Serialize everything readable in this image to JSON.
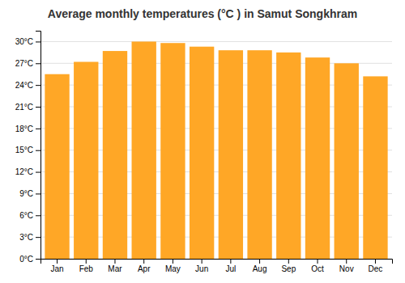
{
  "chart_data": {
    "type": "bar",
    "title": "Average monthly temperatures (°C ) in Samut Songkhram",
    "categories": [
      "Jan",
      "Feb",
      "Mar",
      "Apr",
      "May",
      "Jun",
      "Jul",
      "Aug",
      "Sep",
      "Oct",
      "Nov",
      "Dec"
    ],
    "values": [
      25.5,
      27.2,
      28.7,
      30.0,
      29.8,
      29.3,
      28.8,
      28.8,
      28.5,
      27.8,
      27.0,
      25.2
    ],
    "color": "#FFA726",
    "ylim": [
      0,
      31.5
    ],
    "yticks": [
      {
        "value": 0,
        "label": "0°C"
      },
      {
        "value": 3,
        "label": "3°C"
      },
      {
        "value": 6,
        "label": "6°C"
      },
      {
        "value": 9,
        "label": "9°C"
      },
      {
        "value": 12,
        "label": "12°C"
      },
      {
        "value": 15,
        "label": "15°C"
      },
      {
        "value": 18,
        "label": "18°C"
      },
      {
        "value": 21,
        "label": "21°C"
      },
      {
        "value": 24,
        "label": "24°C"
      },
      {
        "value": 27,
        "label": "27°C"
      },
      {
        "value": 30,
        "label": "30°C"
      }
    ],
    "grid": true
  }
}
